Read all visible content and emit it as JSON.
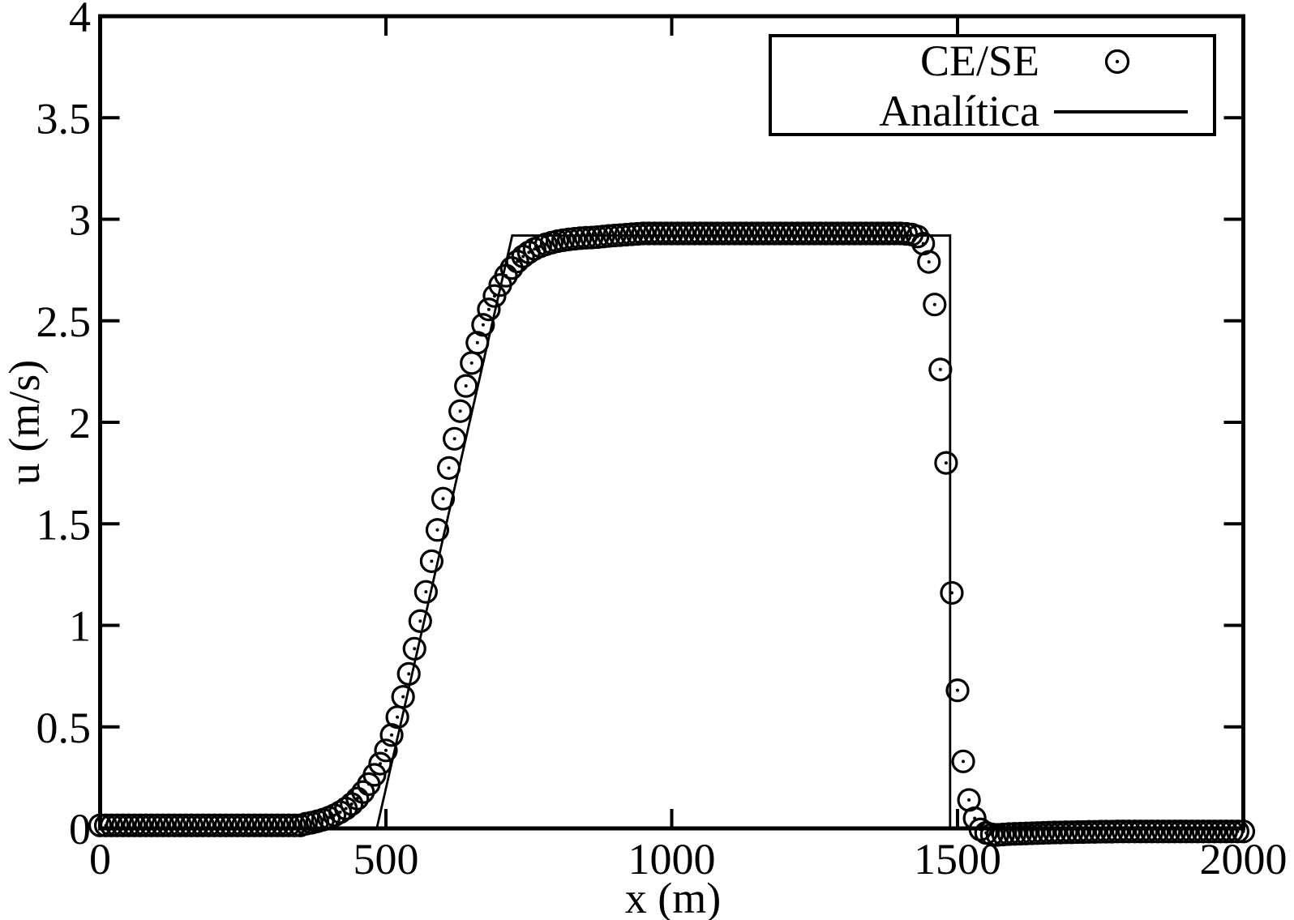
{
  "colors": {
    "foreground": "#000000",
    "background": "#ffffff"
  },
  "legend": {
    "entries": [
      {
        "label": "CE/SE",
        "marker": "open-circle-with-center-dot"
      },
      {
        "label": "Analítica",
        "marker": "solid-line"
      }
    ]
  },
  "chart_data": {
    "type": "scatter",
    "title": "",
    "xlabel": "x (m)",
    "ylabel": "u (m/s)",
    "xlim": [
      0,
      2000
    ],
    "ylim": [
      0,
      4
    ],
    "xticks": [
      0,
      500,
      1000,
      1500,
      2000
    ],
    "yticks": [
      0,
      0.5,
      1,
      1.5,
      2,
      2.5,
      3,
      3.5,
      4
    ],
    "grid": false,
    "legend_position": "top-right",
    "series": [
      {
        "name": "CE/SE",
        "type": "scatter",
        "marker": "open-circle-with-center-dot",
        "x_start": 0,
        "x_step": 10,
        "u": [
          0.015,
          0.015,
          0.015,
          0.015,
          0.015,
          0.015,
          0.015,
          0.015,
          0.015,
          0.015,
          0.015,
          0.015,
          0.015,
          0.015,
          0.015,
          0.015,
          0.015,
          0.015,
          0.015,
          0.015,
          0.015,
          0.015,
          0.015,
          0.015,
          0.015,
          0.015,
          0.015,
          0.015,
          0.015,
          0.015,
          0.015,
          0.015,
          0.015,
          0.015,
          0.015,
          0.015,
          0.023,
          0.028,
          0.035,
          0.043,
          0.053,
          0.065,
          0.08,
          0.098,
          0.12,
          0.147,
          0.179,
          0.218,
          0.264,
          0.319,
          0.384,
          0.46,
          0.548,
          0.648,
          0.761,
          0.885,
          1.021,
          1.165,
          1.316,
          1.47,
          1.624,
          1.775,
          1.919,
          2.055,
          2.179,
          2.292,
          2.392,
          2.48,
          2.556,
          2.622,
          2.676,
          2.722,
          2.76,
          2.792,
          2.817,
          2.837,
          2.854,
          2.867,
          2.877,
          2.885,
          2.892,
          2.897,
          2.901,
          2.904,
          2.907,
          2.909,
          2.91,
          2.912,
          2.915,
          2.918,
          2.92,
          2.922,
          2.924,
          2.926,
          2.928,
          2.93,
          2.93,
          2.93,
          2.93,
          2.93,
          2.93,
          2.93,
          2.93,
          2.93,
          2.93,
          2.93,
          2.93,
          2.93,
          2.93,
          2.93,
          2.93,
          2.93,
          2.93,
          2.93,
          2.93,
          2.93,
          2.93,
          2.93,
          2.93,
          2.93,
          2.93,
          2.93,
          2.93,
          2.93,
          2.93,
          2.93,
          2.93,
          2.93,
          2.93,
          2.93,
          2.93,
          2.93,
          2.93,
          2.93,
          2.93,
          2.93,
          2.93,
          2.93,
          2.93,
          2.93,
          2.93,
          2.928,
          2.925,
          2.915,
          2.88,
          2.79,
          2.58,
          2.26,
          1.8,
          1.16,
          0.68,
          0.33,
          0.14,
          0.05,
          -0.005,
          -0.022,
          -0.03,
          -0.032,
          -0.03,
          -0.028,
          -0.027,
          -0.026,
          -0.025,
          -0.024,
          -0.023,
          -0.022,
          -0.021,
          -0.02,
          -0.02,
          -0.019,
          -0.019,
          -0.018,
          -0.018,
          -0.017,
          -0.017,
          -0.016,
          -0.016,
          -0.016,
          -0.015,
          -0.015,
          -0.015,
          -0.015,
          -0.015,
          -0.015,
          -0.015,
          -0.015,
          -0.015,
          -0.015,
          -0.015,
          -0.015,
          -0.015,
          -0.015,
          -0.015,
          -0.015,
          -0.015,
          -0.015,
          -0.015,
          -0.015,
          -0.015,
          -0.015,
          -0.015
        ]
      },
      {
        "name": "Analítica",
        "type": "line",
        "points": [
          [
            0,
            0
          ],
          [
            484,
            0
          ],
          [
            721,
            2.92
          ],
          [
            1487,
            2.92
          ],
          [
            1487,
            0
          ],
          [
            2000,
            0
          ]
        ]
      }
    ]
  }
}
